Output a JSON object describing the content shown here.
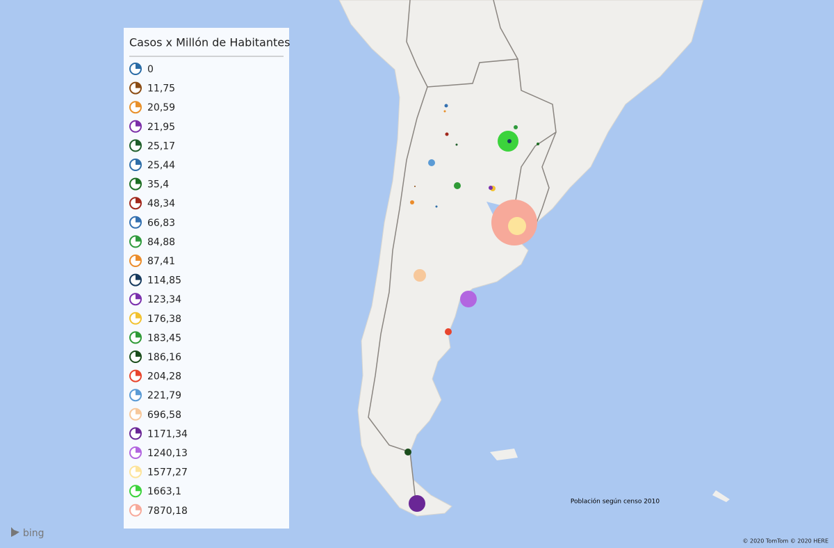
{
  "legend": {
    "title": "Casos x Millón de Habitantes",
    "items": [
      {
        "label": "0",
        "color": "#2b6ca6"
      },
      {
        "label": "11,75",
        "color": "#8b4c14"
      },
      {
        "label": "20,59",
        "color": "#e8902a"
      },
      {
        "label": "21,95",
        "color": "#7b2fa8"
      },
      {
        "label": "25,17",
        "color": "#1f5e2a"
      },
      {
        "label": "25,44",
        "color": "#2f6ea8"
      },
      {
        "label": "35,4",
        "color": "#1e6e24"
      },
      {
        "label": "48,34",
        "color": "#a1281c"
      },
      {
        "label": "66,83",
        "color": "#3370b0"
      },
      {
        "label": "84,88",
        "color": "#2e9a3c"
      },
      {
        "label": "87,41",
        "color": "#eb8c2b"
      },
      {
        "label": "114,85",
        "color": "#163a5e"
      },
      {
        "label": "123,34",
        "color": "#7a30ad"
      },
      {
        "label": "176,38",
        "color": "#f2c230"
      },
      {
        "label": "183,45",
        "color": "#2f9a36"
      },
      {
        "label": "186,16",
        "color": "#1b4d1c"
      },
      {
        "label": "204,28",
        "color": "#e8452d"
      },
      {
        "label": "221,79",
        "color": "#5b9bd5"
      },
      {
        "label": "696,58",
        "color": "#f7c89b"
      },
      {
        "label": "1171,34",
        "color": "#6a2796"
      },
      {
        "label": "1240,13",
        "color": "#b266e0"
      },
      {
        "label": "1577,27",
        "color": "#fde49b"
      },
      {
        "label": "1663,1",
        "color": "#3cd33c"
      },
      {
        "label": "7870,18",
        "color": "#f7a99a"
      }
    ]
  },
  "note": "Población según censo 2010",
  "attribution": "© 2020 TomTom © 2020 HERE",
  "logo": "bing"
}
